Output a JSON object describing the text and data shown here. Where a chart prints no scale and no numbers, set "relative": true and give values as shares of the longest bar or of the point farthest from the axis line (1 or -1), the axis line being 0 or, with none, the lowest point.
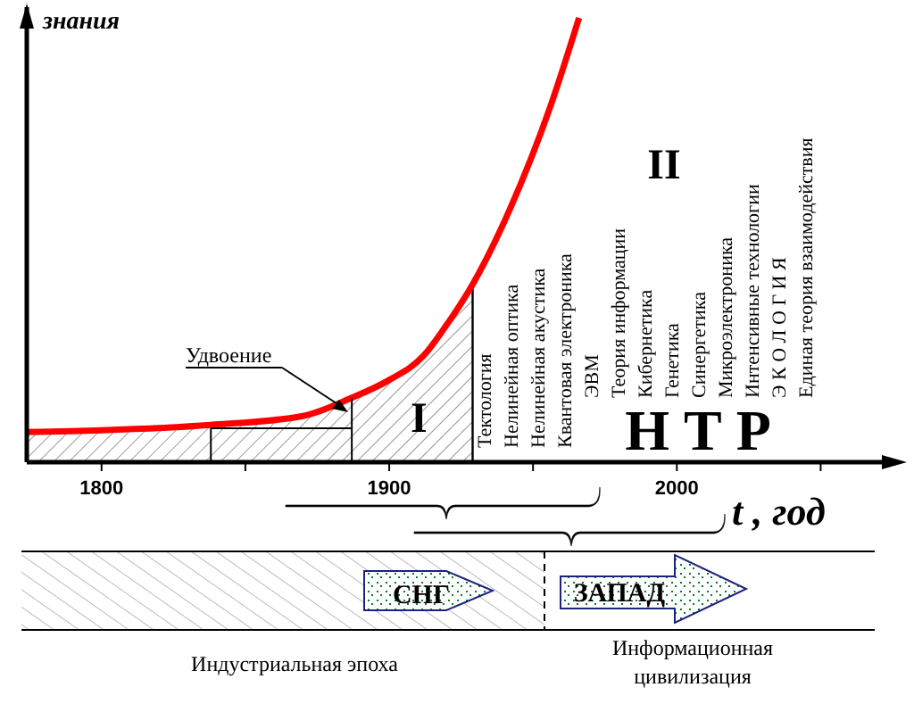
{
  "chart_data": {
    "type": "line",
    "relative": true,
    "ylabel": "знания",
    "xlabel": "t , год",
    "xlim": [
      1774,
      2075
    ],
    "xticks": [
      1800,
      {
        "value": 1850,
        "label": null
      },
      1900,
      {
        "value": 1950,
        "label": null
      },
      2000,
      {
        "value": 2050,
        "label": null
      }
    ],
    "series": [
      {
        "type": "area",
        "color": "#808080",
        "x": [
          1774,
          1800,
          1838,
          1870,
          1887,
          1900,
          1912,
          1919,
          1929
        ],
        "values": [
          0.068,
          0.072,
          0.084,
          0.104,
          0.145,
          0.185,
          0.24,
          0.3,
          0.4
        ]
      },
      {
        "color": "#ff0000",
        "x": [
          1774,
          1800,
          1838,
          1870,
          1887,
          1900,
          1912,
          1919,
          1929,
          1942,
          1956,
          1966
        ],
        "values": [
          0.068,
          0.072,
          0.084,
          0.104,
          0.145,
          0.185,
          0.24,
          0.3,
          0.4,
          0.57,
          0.8,
          1
        ]
      }
    ],
    "annotations": [
      "Удвоение",
      "I",
      "II",
      "Н Т Р",
      "Тектология",
      "Нелинейная оптика",
      "Нелинейная акустика",
      "Квантовая электроника",
      "ЭВМ",
      "Теория информации",
      "Кибернетика",
      "Генетика",
      "Синергетика",
      "Микроэлектроника",
      "Интенсивные технологии",
      "Э К О Л О Г И Я",
      "Единая теория взаимодействия",
      "СНГ",
      "ЗАПАД",
      "Индустриальная эпоха",
      "Информационная цивилизация"
    ]
  }
}
